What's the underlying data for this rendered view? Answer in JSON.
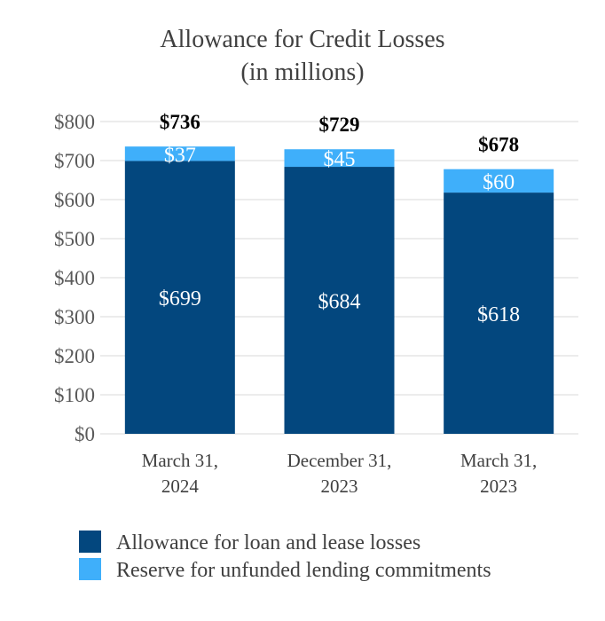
{
  "chart_data": {
    "type": "bar",
    "stacked": true,
    "title": "Allowance for Credit Losses",
    "subtitle": "(in millions)",
    "categories": [
      [
        "March 31,",
        "2024"
      ],
      [
        "December 31,",
        "2023"
      ],
      [
        "March 31,",
        "2023"
      ]
    ],
    "series": [
      {
        "name": "Allowance for loan and lease losses",
        "values": [
          699,
          684,
          618
        ],
        "labels": [
          "$699",
          "$684",
          "$618"
        ],
        "color": "#03477e"
      },
      {
        "name": "Reserve for unfunded lending commitments",
        "values": [
          37,
          45,
          60
        ],
        "labels": [
          "$37",
          "$45",
          "$60"
        ],
        "color": "#3faffa"
      }
    ],
    "totals": [
      "$736",
      "$729",
      "$678"
    ],
    "ylim": [
      0,
      800
    ],
    "yticks": [
      0,
      100,
      200,
      300,
      400,
      500,
      600,
      700,
      800
    ],
    "ytick_labels": [
      "$0",
      "$100",
      "$200",
      "$300",
      "$400",
      "$500",
      "$600",
      "$700",
      "$800"
    ],
    "grid": true,
    "legend_position": "bottom",
    "xlabel": "",
    "ylabel": ""
  }
}
